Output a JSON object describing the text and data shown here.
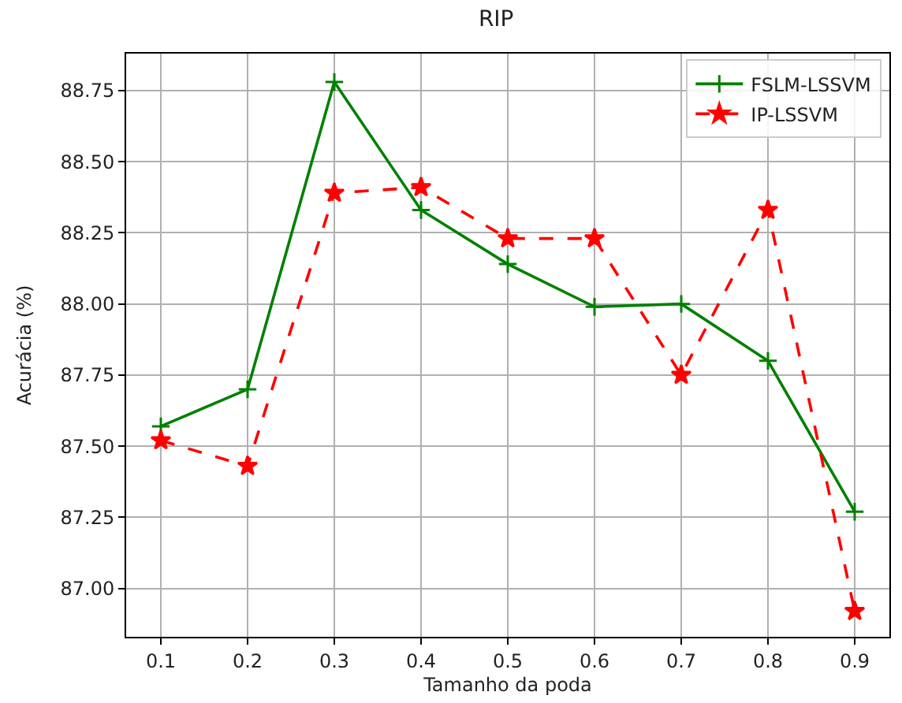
{
  "chart_data": {
    "type": "line",
    "title": "RIP",
    "xlabel": "Tamanho da poda",
    "ylabel": "Acurácia (%)",
    "x": [
      0.1,
      0.2,
      0.3,
      0.4,
      0.5,
      0.6,
      0.7,
      0.8,
      0.9
    ],
    "series": [
      {
        "name": "FSLM-LSSVM",
        "color": "#008000",
        "marker": "cross",
        "line_style": "solid",
        "values": [
          87.57,
          87.7,
          88.78,
          88.33,
          88.14,
          87.99,
          88.0,
          87.8,
          87.27
        ]
      },
      {
        "name": "IP-LSSVM",
        "color": "#ff0000",
        "marker": "star",
        "line_style": "dashed",
        "values": [
          87.52,
          87.43,
          88.39,
          88.41,
          88.23,
          88.23,
          87.75,
          88.33,
          86.92
        ]
      }
    ],
    "xlim": [
      0.06,
      0.94
    ],
    "xticks": [
      0.1,
      0.2,
      0.3,
      0.4,
      0.5,
      0.6,
      0.7,
      0.8,
      0.9
    ],
    "ylim": [
      86.83,
      88.88
    ],
    "yticks": [
      {
        "value": 87.0,
        "label": "87.00"
      },
      {
        "value": 87.25,
        "label": "87.25"
      },
      {
        "value": 87.5,
        "label": "87.50"
      },
      {
        "value": 87.75,
        "label": "87.75"
      },
      {
        "value": 88.0,
        "label": "88.00"
      },
      {
        "value": 88.25,
        "label": "88.25"
      },
      {
        "value": 88.5,
        "label": "88.50"
      },
      {
        "value": 88.75,
        "label": "88.75"
      }
    ],
    "grid": true,
    "legend": "top right"
  }
}
